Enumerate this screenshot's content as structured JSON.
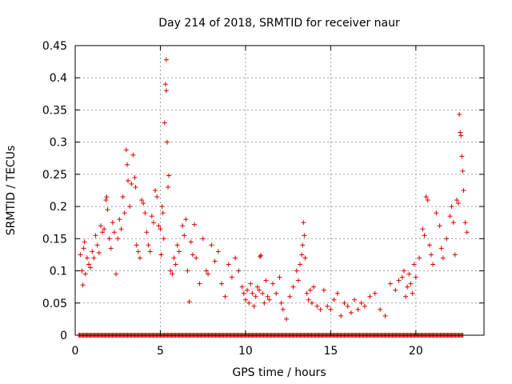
{
  "chart_data": {
    "type": "scatter",
    "title": "Day 214 of 2018, SRMTID for receiver naur",
    "xlabel": "GPS time / hours",
    "ylabel": "SRMTID / TECUs",
    "xlim": [
      0,
      24
    ],
    "ylim": [
      0,
      0.45
    ],
    "grid": true,
    "marker": "+",
    "color": "#e00000",
    "xticks": [
      0,
      5,
      10,
      15,
      20
    ],
    "xtick_labels": [
      "0",
      "5",
      "10",
      "15",
      "20"
    ],
    "yticks": [
      0,
      0.05,
      0.1,
      0.15,
      0.2,
      0.25,
      0.3,
      0.35,
      0.4,
      0.45
    ],
    "ytick_labels": [
      "0",
      "0.05",
      "0.1",
      "0.15",
      "0.2",
      "0.25",
      "0.3",
      "0.35",
      "0.4",
      "0.45"
    ],
    "series": [
      {
        "name": "SRMTID",
        "points": [
          [
            0.3,
            0.125
          ],
          [
            0.4,
            0.1
          ],
          [
            0.45,
            0.078
          ],
          [
            0.5,
            0.135
          ],
          [
            0.55,
            0.145
          ],
          [
            0.6,
            0.095
          ],
          [
            0.7,
            0.12
          ],
          [
            0.8,
            0.11
          ],
          [
            0.9,
            0.105
          ],
          [
            1.0,
            0.13
          ],
          [
            1.1,
            0.12
          ],
          [
            1.2,
            0.155
          ],
          [
            1.3,
            0.14
          ],
          [
            1.4,
            0.128
          ],
          [
            1.5,
            0.17
          ],
          [
            1.6,
            0.16
          ],
          [
            1.7,
            0.165
          ],
          [
            1.8,
            0.21
          ],
          [
            1.85,
            0.215
          ],
          [
            1.9,
            0.195
          ],
          [
            2.0,
            0.15
          ],
          [
            2.1,
            0.135
          ],
          [
            2.2,
            0.175
          ],
          [
            2.3,
            0.16
          ],
          [
            2.4,
            0.095
          ],
          [
            2.5,
            0.15
          ],
          [
            2.6,
            0.18
          ],
          [
            2.7,
            0.165
          ],
          [
            2.8,
            0.215
          ],
          [
            2.9,
            0.19
          ],
          [
            3.0,
            0.288
          ],
          [
            3.05,
            0.265
          ],
          [
            3.1,
            0.24
          ],
          [
            3.2,
            0.2
          ],
          [
            3.3,
            0.235
          ],
          [
            3.4,
            0.28
          ],
          [
            3.5,
            0.245
          ],
          [
            3.55,
            0.23
          ],
          [
            3.6,
            0.14
          ],
          [
            3.7,
            0.13
          ],
          [
            3.8,
            0.12
          ],
          [
            3.9,
            0.21
          ],
          [
            4.0,
            0.205
          ],
          [
            4.1,
            0.19
          ],
          [
            4.2,
            0.16
          ],
          [
            4.3,
            0.14
          ],
          [
            4.4,
            0.13
          ],
          [
            4.5,
            0.185
          ],
          [
            4.6,
            0.175
          ],
          [
            4.7,
            0.225
          ],
          [
            4.8,
            0.215
          ],
          [
            4.9,
            0.17
          ],
          [
            5.0,
            0.165
          ],
          [
            5.05,
            0.125
          ],
          [
            5.1,
            0.2
          ],
          [
            5.15,
            0.19
          ],
          [
            5.2,
            0.15
          ],
          [
            5.25,
            0.33
          ],
          [
            5.3,
            0.39
          ],
          [
            5.35,
            0.38
          ],
          [
            5.35,
            0.428
          ],
          [
            5.4,
            0.3
          ],
          [
            5.45,
            0.23
          ],
          [
            5.5,
            0.248
          ],
          [
            5.6,
            0.1
          ],
          [
            5.7,
            0.095
          ],
          [
            5.8,
            0.12
          ],
          [
            5.9,
            0.11
          ],
          [
            6.0,
            0.14
          ],
          [
            6.1,
            0.13
          ],
          [
            6.3,
            0.17
          ],
          [
            6.4,
            0.155
          ],
          [
            6.5,
            0.18
          ],
          [
            6.6,
            0.1
          ],
          [
            6.7,
            0.052
          ],
          [
            6.8,
            0.145
          ],
          [
            6.9,
            0.125
          ],
          [
            7.0,
            0.172
          ],
          [
            7.1,
            0.12
          ],
          [
            7.3,
            0.08
          ],
          [
            7.5,
            0.15
          ],
          [
            7.7,
            0.1
          ],
          [
            7.8,
            0.095
          ],
          [
            8.0,
            0.14
          ],
          [
            8.2,
            0.115
          ],
          [
            8.4,
            0.13
          ],
          [
            8.6,
            0.08
          ],
          [
            8.8,
            0.06
          ],
          [
            9.0,
            0.11
          ],
          [
            9.2,
            0.09
          ],
          [
            9.4,
            0.12
          ],
          [
            9.6,
            0.1
          ],
          [
            9.8,
            0.075
          ],
          [
            9.9,
            0.065
          ],
          [
            10.0,
            0.055
          ],
          [
            10.1,
            0.07
          ],
          [
            10.2,
            0.05
          ],
          [
            10.3,
            0.08
          ],
          [
            10.4,
            0.065
          ],
          [
            10.5,
            0.045
          ],
          [
            10.6,
            0.06
          ],
          [
            10.7,
            0.075
          ],
          [
            10.8,
            0.07
          ],
          [
            10.85,
            0.122
          ],
          [
            10.9,
            0.124
          ],
          [
            11.0,
            0.065
          ],
          [
            11.1,
            0.05
          ],
          [
            11.2,
            0.085
          ],
          [
            11.3,
            0.06
          ],
          [
            11.4,
            0.055
          ],
          [
            11.6,
            0.08
          ],
          [
            11.8,
            0.065
          ],
          [
            12.0,
            0.09
          ],
          [
            12.1,
            0.05
          ],
          [
            12.2,
            0.04
          ],
          [
            12.4,
            0.025
          ],
          [
            12.6,
            0.06
          ],
          [
            12.8,
            0.075
          ],
          [
            13.0,
            0.1
          ],
          [
            13.1,
            0.085
          ],
          [
            13.2,
            0.11
          ],
          [
            13.3,
            0.125
          ],
          [
            13.35,
            0.14
          ],
          [
            13.4,
            0.175
          ],
          [
            13.45,
            0.155
          ],
          [
            13.5,
            0.12
          ],
          [
            13.6,
            0.065
          ],
          [
            13.7,
            0.055
          ],
          [
            13.8,
            0.07
          ],
          [
            13.9,
            0.05
          ],
          [
            14.0,
            0.075
          ],
          [
            14.2,
            0.045
          ],
          [
            14.4,
            0.04
          ],
          [
            14.6,
            0.07
          ],
          [
            14.8,
            0.045
          ],
          [
            15.0,
            0.04
          ],
          [
            15.2,
            0.055
          ],
          [
            15.4,
            0.065
          ],
          [
            15.6,
            0.03
          ],
          [
            15.8,
            0.05
          ],
          [
            16.0,
            0.045
          ],
          [
            16.2,
            0.035
          ],
          [
            16.4,
            0.055
          ],
          [
            16.6,
            0.04
          ],
          [
            16.8,
            0.05
          ],
          [
            17.0,
            0.045
          ],
          [
            17.3,
            0.06
          ],
          [
            17.6,
            0.065
          ],
          [
            17.9,
            0.04
          ],
          [
            18.2,
            0.03
          ],
          [
            18.5,
            0.08
          ],
          [
            18.8,
            0.07
          ],
          [
            19.0,
            0.085
          ],
          [
            19.2,
            0.09
          ],
          [
            19.3,
            0.1
          ],
          [
            19.4,
            0.06
          ],
          [
            19.5,
            0.075
          ],
          [
            19.6,
            0.095
          ],
          [
            19.7,
            0.08
          ],
          [
            19.8,
            0.065
          ],
          [
            19.9,
            0.11
          ],
          [
            20.0,
            0.09
          ],
          [
            20.2,
            0.12
          ],
          [
            20.4,
            0.165
          ],
          [
            20.5,
            0.155
          ],
          [
            20.6,
            0.215
          ],
          [
            20.7,
            0.21
          ],
          [
            20.8,
            0.14
          ],
          [
            20.9,
            0.125
          ],
          [
            21.0,
            0.11
          ],
          [
            21.2,
            0.19
          ],
          [
            21.4,
            0.17
          ],
          [
            21.5,
            0.135
          ],
          [
            21.6,
            0.12
          ],
          [
            21.8,
            0.15
          ],
          [
            22.0,
            0.185
          ],
          [
            22.1,
            0.2
          ],
          [
            22.2,
            0.175
          ],
          [
            22.3,
            0.125
          ],
          [
            22.4,
            0.21
          ],
          [
            22.5,
            0.205
          ],
          [
            22.55,
            0.343
          ],
          [
            22.6,
            0.315
          ],
          [
            22.65,
            0.31
          ],
          [
            22.7,
            0.278
          ],
          [
            22.75,
            0.255
          ],
          [
            22.8,
            0.225
          ],
          [
            22.9,
            0.175
          ],
          [
            23.0,
            0.16
          ]
        ]
      }
    ],
    "zero_points_x_range": [
      0.2,
      22.8
    ],
    "zero_points_y": 0
  }
}
